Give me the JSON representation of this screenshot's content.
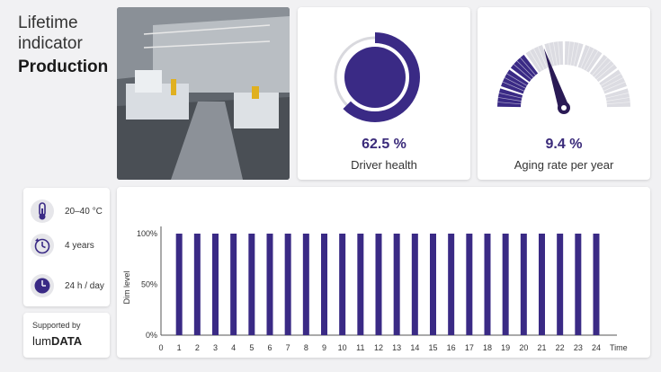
{
  "header": {
    "line1": "Lifetime",
    "line2": "indicator",
    "line3": "Production"
  },
  "driver_health": {
    "value": "62.5 %",
    "label": "Driver health",
    "fraction": 0.625
  },
  "aging_rate": {
    "value": "9.4 %",
    "label": "Aging rate per year",
    "fraction": 0.34
  },
  "conditions": [
    {
      "icon": "thermometer-icon",
      "text": "20–40 °C"
    },
    {
      "icon": "clock-cycle-icon",
      "text": "4 years"
    },
    {
      "icon": "day-cycle-icon",
      "text": "24 h / day"
    }
  ],
  "supported": {
    "label": "Supported by",
    "brand_light": "lum",
    "brand_bold": "DATA"
  },
  "colors": {
    "primary": "#3a2a85",
    "track": "#d9d9de",
    "background": "#f1f1f3"
  },
  "chart_data": {
    "type": "bar",
    "categories": [
      "1",
      "2",
      "3",
      "4",
      "5",
      "6",
      "7",
      "8",
      "9",
      "10",
      "11",
      "12",
      "13",
      "14",
      "15",
      "16",
      "17",
      "18",
      "19",
      "20",
      "21",
      "22",
      "23",
      "24"
    ],
    "values": [
      100,
      100,
      100,
      100,
      100,
      100,
      100,
      100,
      100,
      100,
      100,
      100,
      100,
      100,
      100,
      100,
      100,
      100,
      100,
      100,
      100,
      100,
      100,
      100
    ],
    "x_ticks": [
      "0",
      "1",
      "2",
      "3",
      "4",
      "5",
      "6",
      "7",
      "8",
      "9",
      "10",
      "11",
      "12",
      "13",
      "14",
      "15",
      "16",
      "17",
      "18",
      "19",
      "20",
      "21",
      "22",
      "23",
      "24"
    ],
    "y_ticks": [
      "0%",
      "50%",
      "100%"
    ],
    "xlabel": "Time",
    "ylabel": "Dim level",
    "ylim": [
      0,
      100
    ],
    "xlim": [
      0,
      24
    ],
    "grid": false
  }
}
